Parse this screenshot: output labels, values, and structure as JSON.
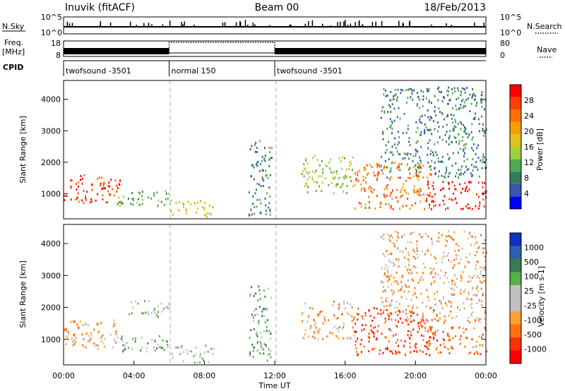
{
  "header": {
    "radar": "Inuvik (fitACF)",
    "beam": "Beam 00",
    "date": "18/Feb/2013"
  },
  "colors": {
    "power_scale": [
      "#0000ff",
      "#3a55b0",
      "#2f7f58",
      "#4faa4f",
      "#a0d040",
      "#e0c020",
      "#f5a000",
      "#ff7000",
      "#ff4000",
      "#ff0000"
    ],
    "velocity_scale": [
      "#1030c0",
      "#2a60b0",
      "#3a7a50",
      "#58b048",
      "#c0c0c0",
      "#c0c0c0",
      "#ffa030",
      "#ff7010",
      "#ff3000",
      "#ff0000"
    ],
    "ground_scatter": "#c0c0c0"
  },
  "chart_data": [
    {
      "type": "line",
      "name": "noise-panel",
      "left_label": "N.Sky",
      "right_label": "N.Search",
      "left_ticks": [
        "10^5",
        "10^0"
      ],
      "right_ticks": [
        "10^5",
        "10^0"
      ]
    },
    {
      "type": "line",
      "name": "frequency-panel",
      "left_label_1": "Freq.",
      "left_label_2": "[MHz]",
      "right_label": "Nave",
      "left_ticks": [
        "18",
        "8"
      ],
      "right_ticks": [
        "80",
        "0"
      ]
    },
    {
      "type": "table",
      "name": "cpid-panel",
      "label": "CPID",
      "segments": [
        {
          "start_hour": 0,
          "end_hour": 6,
          "label": "twofsound -3501"
        },
        {
          "start_hour": 6,
          "end_hour": 12,
          "label": "normal 150"
        },
        {
          "start_hour": 12,
          "end_hour": 24,
          "label": "twofsound -3501"
        }
      ]
    },
    {
      "type": "heatmap",
      "name": "power-panel",
      "ylabel": "Slant Range [km]",
      "ylim": [
        200,
        4600
      ],
      "yticks": [
        1000,
        2000,
        3000,
        4000
      ],
      "xlim": [
        0,
        24
      ],
      "colorbar_label": "Power [dB]",
      "colorbar_ticks": [
        "4",
        "8",
        "12",
        "16",
        "20",
        "24",
        "28"
      ],
      "regions": [
        {
          "x0": 0,
          "x1": 3.2,
          "y0": 700,
          "y1": 1600,
          "level": 8
        },
        {
          "x0": 3.0,
          "x1": 6.0,
          "y0": 600,
          "y1": 1100,
          "level": 3
        },
        {
          "x0": 6.0,
          "x1": 8.5,
          "y0": 250,
          "y1": 800,
          "level": 5
        },
        {
          "x0": 10.5,
          "x1": 11.8,
          "y0": 300,
          "y1": 2700,
          "level": 2
        },
        {
          "x0": 13.5,
          "x1": 16.5,
          "y0": 1000,
          "y1": 2200,
          "level": 4
        },
        {
          "x0": 16.5,
          "x1": 21.0,
          "y0": 500,
          "y1": 2000,
          "level": 7
        },
        {
          "x0": 20.5,
          "x1": 24.0,
          "y0": 500,
          "y1": 1400,
          "level": 9
        },
        {
          "x0": 18.0,
          "x1": 24.0,
          "y0": 1500,
          "y1": 4400,
          "level": 2
        }
      ]
    },
    {
      "type": "heatmap",
      "name": "velocity-panel",
      "ylabel": "Slant Range [km]",
      "xlabel": "Time UT",
      "ylim": [
        200,
        4600
      ],
      "yticks": [
        1000,
        2000,
        3000,
        4000
      ],
      "xlim": [
        0,
        24
      ],
      "xticks": [
        "00:00",
        "04:00",
        "08:00",
        "12:00",
        "16:00",
        "20:00",
        "00:00"
      ],
      "colorbar_label": "Velocity [m s-1]",
      "colorbar_ticks": [
        "1000",
        "500",
        "100",
        "25",
        "-25",
        "-100",
        "-500",
        "-1000"
      ],
      "regions": [
        {
          "x0": 0,
          "x1": 3.2,
          "y0": 700,
          "y1": 1600,
          "level": 6
        },
        {
          "x0": 3.0,
          "x1": 6.0,
          "y0": 600,
          "y1": 1100,
          "level": 3
        },
        {
          "x0": 3.5,
          "x1": 6.0,
          "y0": 1700,
          "y1": 2200,
          "level": 4
        },
        {
          "x0": 6.0,
          "x1": 8.5,
          "y0": 250,
          "y1": 800,
          "level": 4
        },
        {
          "x0": 10.5,
          "x1": 11.8,
          "y0": 300,
          "y1": 2700,
          "level": 3
        },
        {
          "x0": 13.5,
          "x1": 16.5,
          "y0": 1000,
          "y1": 2200,
          "level": 6
        },
        {
          "x0": 16.5,
          "x1": 21.0,
          "y0": 500,
          "y1": 2000,
          "level": 8
        },
        {
          "x0": 20.5,
          "x1": 24.0,
          "y0": 500,
          "y1": 1400,
          "level": 7
        },
        {
          "x0": 18.0,
          "x1": 24.0,
          "y0": 1500,
          "y1": 4400,
          "level": 6
        }
      ]
    }
  ]
}
